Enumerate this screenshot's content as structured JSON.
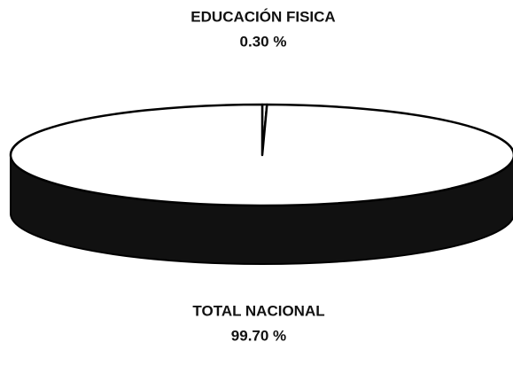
{
  "chart_data": {
    "type": "pie",
    "categories": [
      "EDUCACIÓN FISICA",
      "TOTAL NACIONAL"
    ],
    "values": [
      0.3,
      99.7
    ],
    "value_labels": [
      "0.30 %",
      "99.70 %"
    ],
    "colors": [
      "#ffffff",
      "#ffffff"
    ]
  }
}
